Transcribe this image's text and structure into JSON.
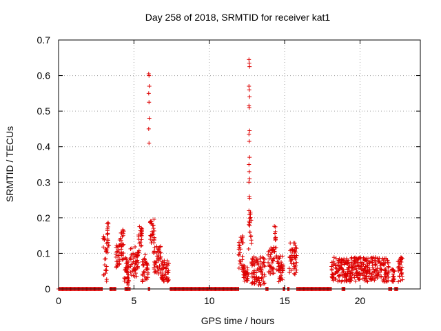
{
  "chart_data": {
    "type": "scatter",
    "title": "Day 258 of 2018, SRMTID for receiver kat1",
    "xlabel": "GPS time / hours",
    "ylabel": "SRMTID / TECUs",
    "xlim": [
      0,
      24
    ],
    "ylim": [
      0,
      0.7
    ],
    "xticks": [
      0,
      5,
      10,
      15,
      20
    ],
    "yticks": [
      0,
      0.1,
      0.2,
      0.3,
      0.4,
      0.5,
      0.6,
      0.7
    ],
    "grid": true,
    "marker": "+",
    "colors": {
      "series": "#dd0000",
      "grid": "#a0a0a0",
      "axis": "#000000"
    },
    "zero_ranges": [
      [
        0,
        2.9
      ],
      [
        3.4,
        3.8
      ],
      [
        4.4,
        4.75
      ],
      [
        5.95,
        6.05
      ],
      [
        7.4,
        11.95
      ],
      [
        13.75,
        13.9
      ],
      [
        14.9,
        15.0
      ],
      [
        15.2,
        15.3
      ],
      [
        15.8,
        18.1
      ],
      [
        18.8,
        19.0
      ],
      [
        21.9,
        22.1
      ],
      [
        22.3,
        22.5
      ]
    ],
    "clusters": [
      {
        "x": [
          2.95,
          3.2
        ],
        "y": [
          0.02,
          0.15
        ]
      },
      {
        "x": [
          3.15,
          3.35
        ],
        "y": [
          0.1,
          0.19
        ]
      },
      {
        "x": [
          3.8,
          4.05
        ],
        "y": [
          0.06,
          0.13
        ]
      },
      {
        "x": [
          4.05,
          4.35
        ],
        "y": [
          0.08,
          0.17
        ]
      },
      {
        "x": [
          4.35,
          4.75
        ],
        "y": [
          0.01,
          0.09
        ]
      },
      {
        "x": [
          4.75,
          5.3
        ],
        "y": [
          0.03,
          0.12
        ]
      },
      {
        "x": [
          5.3,
          5.55
        ],
        "y": [
          0.1,
          0.18
        ]
      },
      {
        "x": [
          5.55,
          5.95
        ],
        "y": [
          0.02,
          0.1
        ]
      },
      {
        "x": [
          6.05,
          6.35
        ],
        "y": [
          0.12,
          0.2
        ]
      },
      {
        "x": [
          6.3,
          6.8
        ],
        "y": [
          0.04,
          0.12
        ]
      },
      {
        "x": [
          6.8,
          7.35
        ],
        "y": [
          0.02,
          0.08
        ]
      },
      {
        "x": [
          11.95,
          12.25
        ],
        "y": [
          0.05,
          0.16
        ]
      },
      {
        "x": [
          12.2,
          12.6
        ],
        "y": [
          0.02,
          0.07
        ]
      },
      {
        "x": [
          12.6,
          12.8
        ],
        "y": [
          0.1,
          0.22
        ]
      },
      {
        "x": [
          12.8,
          13.7
        ],
        "y": [
          0.01,
          0.09
        ]
      },
      {
        "x": [
          13.9,
          14.3
        ],
        "y": [
          0.04,
          0.12
        ]
      },
      {
        "x": [
          14.3,
          14.45
        ],
        "y": [
          0.1,
          0.18
        ]
      },
      {
        "x": [
          14.45,
          14.9
        ],
        "y": [
          0.02,
          0.1
        ]
      },
      {
        "x": [
          15.3,
          15.8
        ],
        "y": [
          0.04,
          0.13
        ]
      },
      {
        "x": [
          18.1,
          21.9
        ],
        "y": [
          0.02,
          0.09
        ]
      },
      {
        "x": [
          22.1,
          22.3
        ],
        "y": [
          0.02,
          0.06
        ]
      },
      {
        "x": [
          22.5,
          22.85
        ],
        "y": [
          0.02,
          0.09
        ]
      }
    ],
    "spikes": [
      {
        "x": 6.0,
        "values": [
          0.605,
          0.6,
          0.57,
          0.55,
          0.525,
          0.48,
          0.45,
          0.41
        ]
      },
      {
        "x": 12.65,
        "values": [
          0.645,
          0.635,
          0.625,
          0.57,
          0.56,
          0.54,
          0.515,
          0.51,
          0.445,
          0.435,
          0.415,
          0.37,
          0.35,
          0.33,
          0.31,
          0.3,
          0.26,
          0.255,
          0.22
        ]
      }
    ]
  }
}
